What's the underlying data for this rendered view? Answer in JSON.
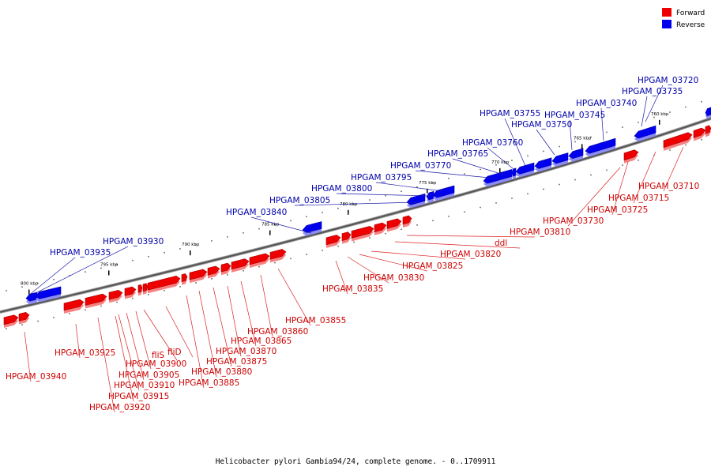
{
  "legend": {
    "forward_label": "Forward",
    "reverse_label": "Reverse",
    "forward_color": "#ee0000",
    "reverse_color": "#0000ee"
  },
  "caption": "Helicobacter pylori Gambia94/24, complete genome. - 0..1709911",
  "scale_ticks": [
    {
      "label": "800 kbp",
      "pos": 800
    },
    {
      "label": "795 kbp",
      "pos": 795
    },
    {
      "label": "790 kbp",
      "pos": 790
    },
    {
      "label": "785 kbp",
      "pos": 785
    },
    {
      "label": "780 kbp",
      "pos": 780
    },
    {
      "label": "775 kbp",
      "pos": 775
    },
    {
      "label": "770 kbp",
      "pos": 770
    },
    {
      "label": "765 kbp",
      "pos": 765
    },
    {
      "label": "760 kbp",
      "pos": 760
    }
  ],
  "genes_reverse": [
    {
      "name": "HPGAM_03720"
    },
    {
      "name": "HPGAM_03735"
    },
    {
      "name": "HPGAM_03740"
    },
    {
      "name": "HPGAM_03745"
    },
    {
      "name": "HPGAM_03750"
    },
    {
      "name": "HPGAM_03755"
    },
    {
      "name": "HPGAM_03760"
    },
    {
      "name": "HPGAM_03765"
    },
    {
      "name": "HPGAM_03770"
    },
    {
      "name": "HPGAM_03795"
    },
    {
      "name": "HPGAM_03800"
    },
    {
      "name": "HPGAM_03805"
    },
    {
      "name": "HPGAM_03840"
    },
    {
      "name": "HPGAM_03930"
    },
    {
      "name": "HPGAM_03935"
    }
  ],
  "genes_forward": [
    {
      "name": "HPGAM_03710"
    },
    {
      "name": "HPGAM_03715"
    },
    {
      "name": "HPGAM_03725"
    },
    {
      "name": "HPGAM_03730"
    },
    {
      "name": "HPGAM_03810"
    },
    {
      "name": "ddl"
    },
    {
      "name": "HPGAM_03820"
    },
    {
      "name": "HPGAM_03825"
    },
    {
      "name": "HPGAM_03830"
    },
    {
      "name": "HPGAM_03835"
    },
    {
      "name": "HPGAM_03855"
    },
    {
      "name": "HPGAM_03860"
    },
    {
      "name": "HPGAM_03865"
    },
    {
      "name": "HPGAM_03870"
    },
    {
      "name": "HPGAM_03875"
    },
    {
      "name": "HPGAM_03880"
    },
    {
      "name": "HPGAM_03885"
    },
    {
      "name": "fliD"
    },
    {
      "name": "fliS"
    },
    {
      "name": "HPGAM_03900"
    },
    {
      "name": "HPGAM_03905"
    },
    {
      "name": "HPGAM_03910"
    },
    {
      "name": "HPGAM_03915"
    },
    {
      "name": "HPGAM_03920"
    },
    {
      "name": "HPGAM_03925"
    },
    {
      "name": "HPGAM_03940"
    }
  ]
}
